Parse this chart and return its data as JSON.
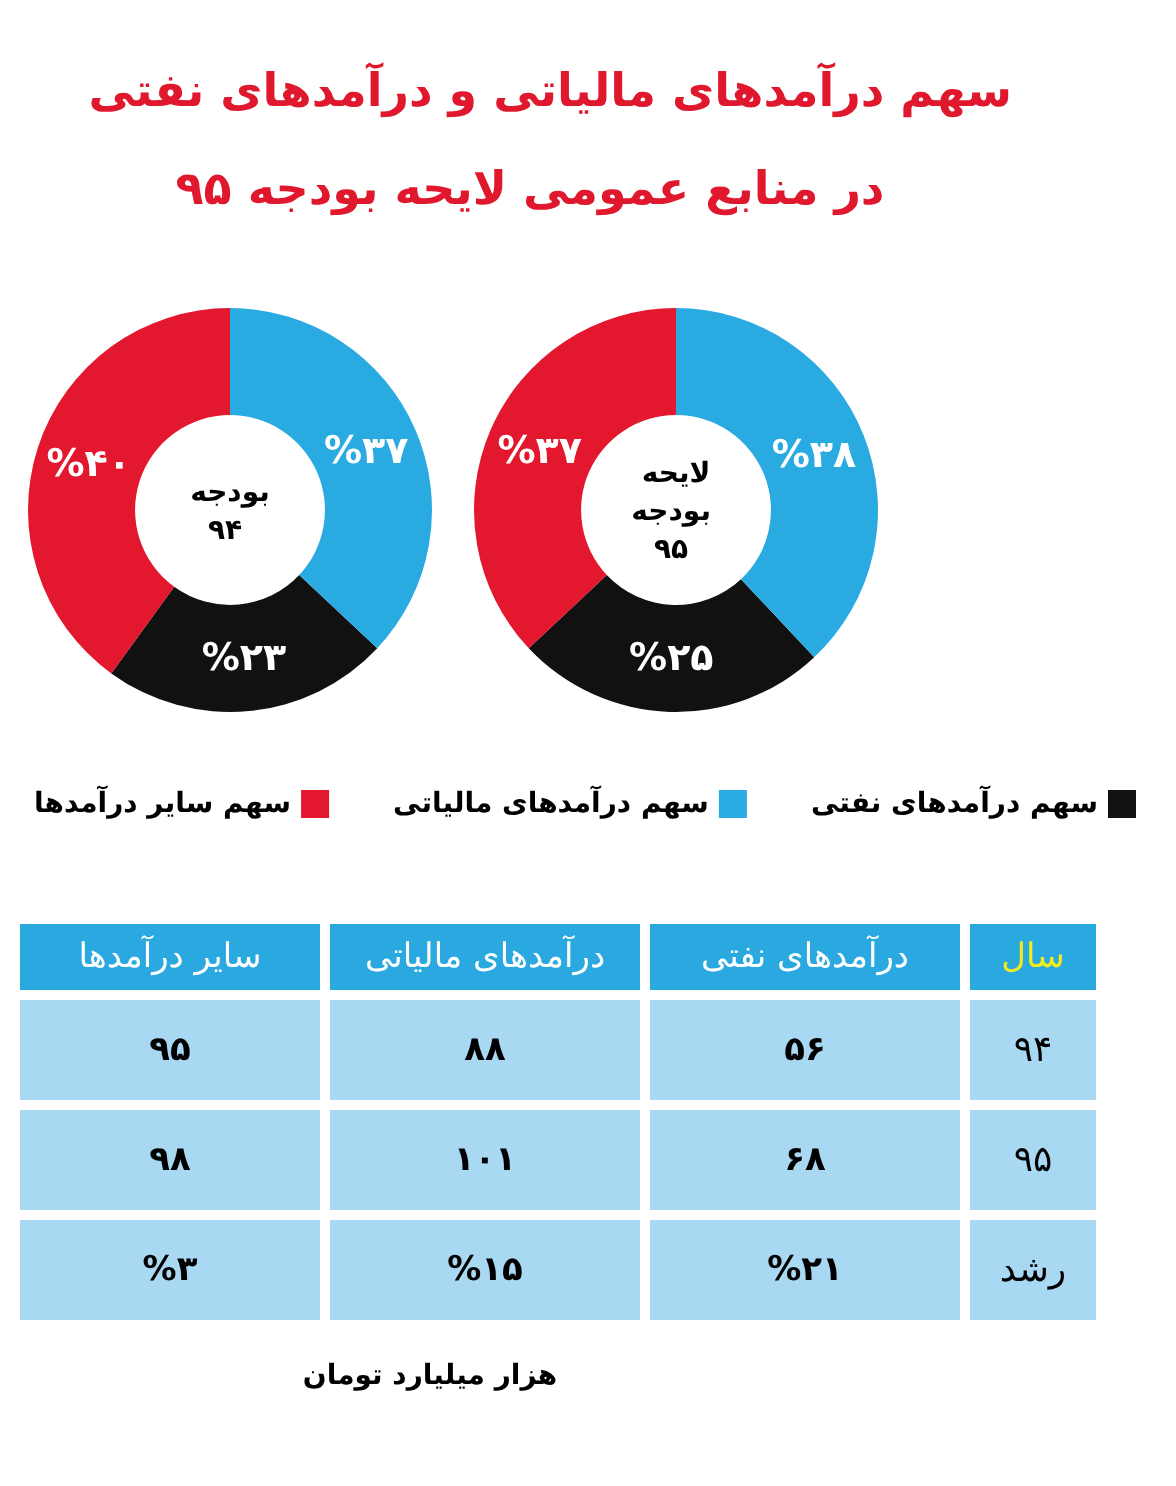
{
  "chart_data": [
    {
      "type": "donut",
      "title": "سهم درآمدهای مالیاتی و درآمدهای نفتی",
      "subtitle": "در منابع عمومی لایحه بودجه ۹۵",
      "annotations": [
        "بودجه ۹۴"
      ],
      "categories": [
        "سهم درآمدهای نفتی",
        "سهم درآمدهای مالیاتی",
        "سهم سایر درآمدها"
      ],
      "values": [
        23,
        37,
        40
      ],
      "colors": [
        "#111111",
        "#29abe2",
        "#e3172d"
      ],
      "value_labels": [
        "%۲۳",
        "%۳۷",
        "%۴۰"
      ],
      "legend": "bottom"
    },
    {
      "type": "donut",
      "annotations": [
        "لایحه بودجه ۹۵"
      ],
      "categories": [
        null,
        null,
        null
      ],
      "values": [
        25,
        38,
        37
      ],
      "colors": [
        "#111111",
        "#29abe2",
        "#e3172d"
      ],
      "value_labels": [
        "%۲۵",
        "%۳۸",
        "%۳۷"
      ]
    },
    {
      "type": "other",
      "categories": [
        "سایر درآمدها",
        "درآمدهای مالیاتی",
        "درآمدهای نفتی",
        "سال"
      ],
      "y_categories": [
        "۹۴",
        "۹۵",
        "رشد"
      ],
      "cell_labels": [
        [
          "۹۵",
          "۸۸",
          "۵۶"
        ],
        [
          "۹۸",
          "۱۰۱",
          "۶۸"
        ],
        [
          "%۳",
          "%۱۵",
          "%۲۱"
        ]
      ],
      "annotations": [
        "هزار میلیارد تومان"
      ]
    }
  ]
}
